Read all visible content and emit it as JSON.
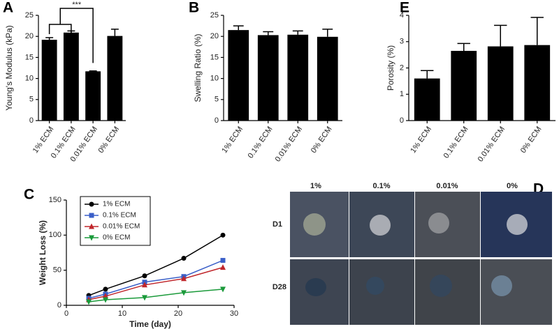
{
  "chart_data": [
    {
      "type": "bar",
      "panel": "A",
      "ylabel": "Young's Modulus (kPa)",
      "categories": [
        "1% ECM",
        "0.1% ECM",
        "0.01% ECM",
        "0% ECM"
      ],
      "values": [
        19.2,
        20.9,
        11.7,
        20.1
      ],
      "errors": [
        0.5,
        0.4,
        0.1,
        1.6
      ],
      "color": "#000000",
      "ylim": [
        0,
        25
      ],
      "yticks": [
        0,
        5,
        10,
        15,
        20,
        25
      ],
      "annotation": "***"
    },
    {
      "type": "bar",
      "panel": "B",
      "ylabel": "Swelling Ratio (%)",
      "categories": [
        "1% ECM",
        "0.1% ECM",
        "0.01% ECM",
        "0% ECM"
      ],
      "values": [
        21.5,
        20.3,
        20.4,
        19.9
      ],
      "errors": [
        1.0,
        0.8,
        0.9,
        1.8
      ],
      "color": "#000000",
      "ylim": [
        0,
        25
      ],
      "yticks": [
        0,
        5,
        10,
        15,
        20,
        25
      ]
    },
    {
      "type": "bar",
      "panel": "E",
      "ylabel": "Porosity (%)",
      "categories": [
        "1% ECM",
        "0.1% ECM",
        "0.01% ECM",
        "0% ECM"
      ],
      "values": [
        1.6,
        2.65,
        2.82,
        2.87
      ],
      "errors": [
        0.3,
        0.28,
        0.8,
        1.05
      ],
      "color": "#000000",
      "ylim": [
        0,
        4
      ],
      "yticks": [
        0,
        1,
        2,
        3,
        4
      ]
    },
    {
      "type": "line",
      "panel": "C",
      "xlabel": "Time (day)",
      "ylabel": "Weight Loss (%)",
      "x": [
        4,
        7,
        14,
        21,
        28
      ],
      "series": [
        {
          "name": "1% ECM",
          "color": "#000000",
          "marker": "circle",
          "values": [
            14,
            23,
            42,
            67,
            100
          ]
        },
        {
          "name": "0.1% ECM",
          "color": "#3a5fc8",
          "marker": "square",
          "values": [
            10,
            16,
            33,
            41,
            64
          ]
        },
        {
          "name": "0.01% ECM",
          "color": "#c0262b",
          "marker": "triangle-up",
          "values": [
            8,
            13,
            29,
            38,
            54
          ]
        },
        {
          "name": "0% ECM",
          "color": "#1a9a3a",
          "marker": "triangle-down",
          "values": [
            5,
            8,
            11,
            18,
            23
          ]
        }
      ],
      "xlim": [
        0,
        30
      ],
      "xticks": [
        0,
        10,
        20,
        30
      ],
      "ylim": [
        0,
        150
      ],
      "yticks": [
        0,
        50,
        100,
        150
      ],
      "legend": "upper left"
    }
  ],
  "image_panel": {
    "panel": "D",
    "columns": [
      "1%",
      "0.1%",
      "0.01%",
      "0%"
    ],
    "rows": [
      "D1",
      "D28"
    ]
  }
}
